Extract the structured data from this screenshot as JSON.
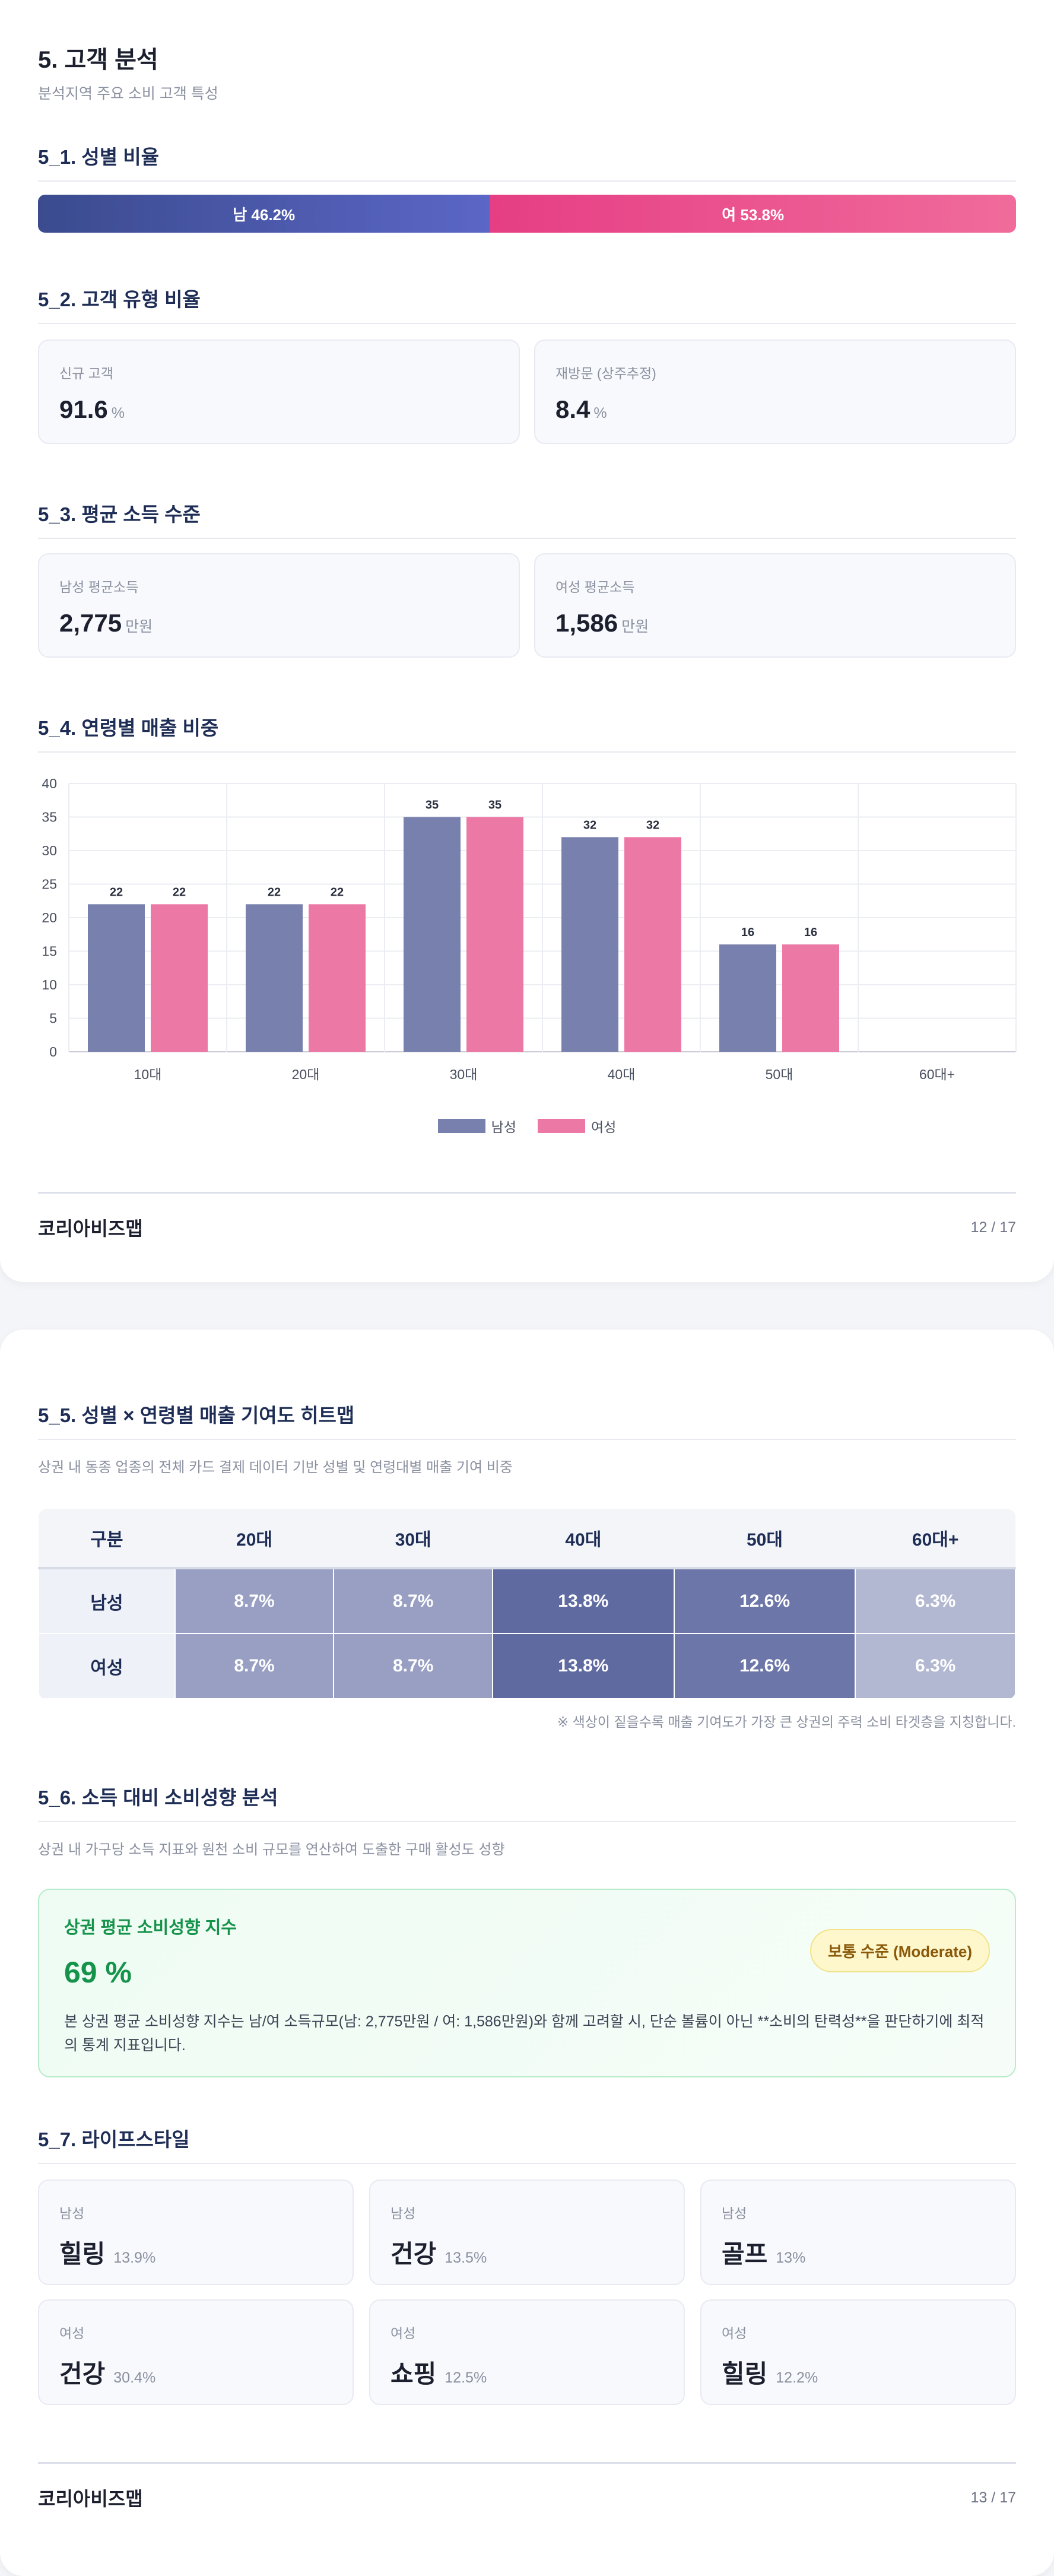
{
  "page1": {
    "title": "5. 고객 분석",
    "subtitle": "분석지역 주요 소비 고객 특성",
    "gender": {
      "heading": "5_1. 성별 비율",
      "male_label": "남 46.2%",
      "female_label": "여 53.8%",
      "male_pct": 46.2,
      "female_pct": 53.8,
      "male_color": "#4a58a8",
      "female_color": "#ec5390"
    },
    "customer_type": {
      "heading": "5_2. 고객 유형 비율",
      "cards": [
        {
          "label": "신규 고객",
          "value": "91.6",
          "unit": "%"
        },
        {
          "label": "재방문 (상주추정)",
          "value": "8.4",
          "unit": "%"
        }
      ]
    },
    "income": {
      "heading": "5_3. 평균 소득 수준",
      "cards": [
        {
          "label": "남성 평균소득",
          "value": "2,775",
          "unit": "만원"
        },
        {
          "label": "여성 평균소득",
          "value": "1,586",
          "unit": "만원"
        }
      ]
    },
    "age_chart_heading": "5_4. 연령별 매출 비중",
    "footer": {
      "brand": "코리아비즈맵",
      "page": "12 / 17"
    }
  },
  "chart_data": {
    "type": "bar",
    "categories": [
      "10대",
      "20대",
      "30대",
      "40대",
      "50대",
      "60대+"
    ],
    "series": [
      {
        "name": "남성",
        "values": [
          22,
          22,
          35,
          32,
          16,
          null
        ],
        "color": "#7880ad"
      },
      {
        "name": "여성",
        "values": [
          22,
          22,
          35,
          32,
          16,
          null
        ],
        "color": "#ec78a5"
      }
    ],
    "y_ticks": [
      "0",
      "5",
      "10",
      "15",
      "20",
      "25",
      "30",
      "35",
      "40"
    ],
    "ylim": [
      0,
      40
    ],
    "grid": true,
    "legend_position": "bottom-center",
    "title": "",
    "xlabel": "",
    "ylabel": ""
  },
  "page2": {
    "heatmap": {
      "heading": "5_5. 성별 × 연령별 매출 기여도 히트맵",
      "description": "상권 내 동종 업종의 전체 카드 결제 데이터 기반 성별 및 연령대별 매출 기여 비중",
      "columns": [
        "구분",
        "20대",
        "30대",
        "40대",
        "50대",
        "60대+"
      ],
      "rows": [
        {
          "label": "남성",
          "cells": [
            {
              "text": "8.7%",
              "value": 8.7
            },
            {
              "text": "8.7%",
              "value": 8.7
            },
            {
              "text": "13.8%",
              "value": 13.8
            },
            {
              "text": "12.6%",
              "value": 12.6
            },
            {
              "text": "6.3%",
              "value": 6.3
            }
          ]
        },
        {
          "label": "여성",
          "cells": [
            {
              "text": "8.7%",
              "value": 8.7
            },
            {
              "text": "8.7%",
              "value": 8.7
            },
            {
              "text": "13.8%",
              "value": 13.8
            },
            {
              "text": "12.6%",
              "value": 12.6
            },
            {
              "text": "6.3%",
              "value": 6.3
            }
          ]
        }
      ],
      "note": "※ 색상이 짙을수록 매출 기여도가 가장 큰 상권의 주력 소비 타겟층을 지칭합니다."
    },
    "propensity": {
      "heading": "5_6. 소득 대비 소비성향 분석",
      "description": "상권 내 가구당 소득 지표와 원천 소비 규모를 연산하여 도출한 구매 활성도 성향",
      "card_title": "상권 평균 소비성향 지수",
      "value": "69 %",
      "badge": "보통 수준 (Moderate)",
      "text": "본 상권 평균 소비성향 지수는 남/여 소득규모(남: 2,775만원 / 여: 1,586만원)와 함께 고려할 시, 단순 볼륨이 아닌 **소비의 탄력성**을 판단하기에 최적의 통계 지표입니다."
    },
    "lifestyle": {
      "heading": "5_7. 라이프스타일",
      "cards": [
        {
          "gender": "남성",
          "name": "힐링",
          "pct": "13.9%"
        },
        {
          "gender": "남성",
          "name": "건강",
          "pct": "13.5%"
        },
        {
          "gender": "남성",
          "name": "골프",
          "pct": "13%"
        },
        {
          "gender": "여성",
          "name": "건강",
          "pct": "30.4%"
        },
        {
          "gender": "여성",
          "name": "쇼핑",
          "pct": "12.5%"
        },
        {
          "gender": "여성",
          "name": "힐링",
          "pct": "12.2%"
        }
      ]
    },
    "footer": {
      "brand": "코리아비즈맵",
      "page": "13 / 17"
    }
  }
}
